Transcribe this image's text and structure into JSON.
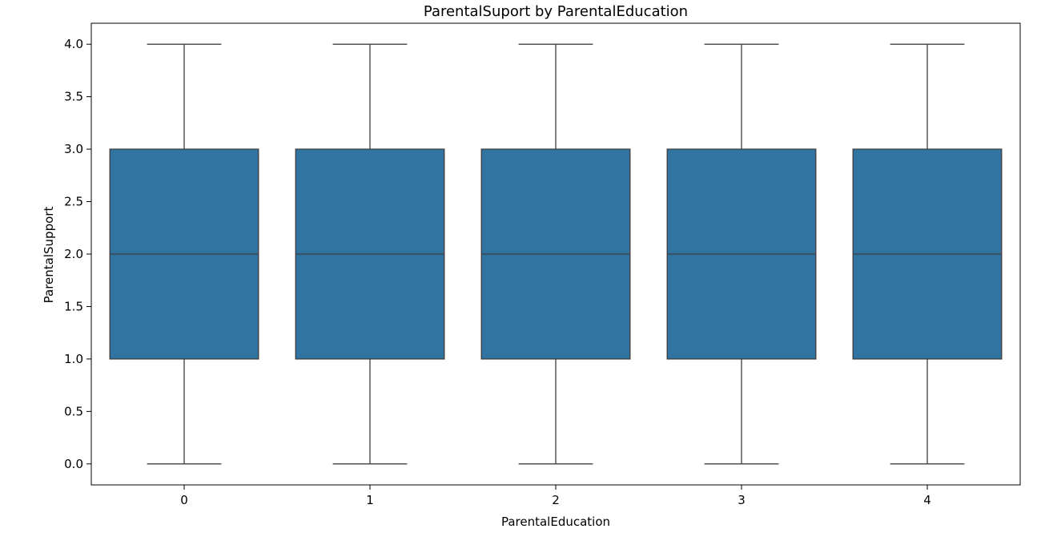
{
  "chart_data": {
    "type": "box",
    "title": "ParentalSuport by ParentalEducation",
    "xlabel": "ParentalEducation",
    "ylabel": "ParentalSupport",
    "categories": [
      "0",
      "1",
      "2",
      "3",
      "4"
    ],
    "boxes": [
      {
        "category": "0",
        "whisker_low": 0.0,
        "q1": 1.0,
        "median": 2.0,
        "q3": 3.0,
        "whisker_high": 4.0
      },
      {
        "category": "1",
        "whisker_low": 0.0,
        "q1": 1.0,
        "median": 2.0,
        "q3": 3.0,
        "whisker_high": 4.0
      },
      {
        "category": "2",
        "whisker_low": 0.0,
        "q1": 1.0,
        "median": 2.0,
        "q3": 3.0,
        "whisker_high": 4.0
      },
      {
        "category": "3",
        "whisker_low": 0.0,
        "q1": 1.0,
        "median": 2.0,
        "q3": 3.0,
        "whisker_high": 4.0
      },
      {
        "category": "4",
        "whisker_low": 0.0,
        "q1": 1.0,
        "median": 2.0,
        "q3": 3.0,
        "whisker_high": 4.0
      }
    ],
    "yticks": [
      "0.0",
      "0.5",
      "1.0",
      "1.5",
      "2.0",
      "2.5",
      "3.0",
      "3.5",
      "4.0"
    ],
    "ylim": [
      -0.2,
      4.2
    ],
    "grid": false,
    "box_color": "#3274a1",
    "line_color": "#3f3f3f"
  }
}
